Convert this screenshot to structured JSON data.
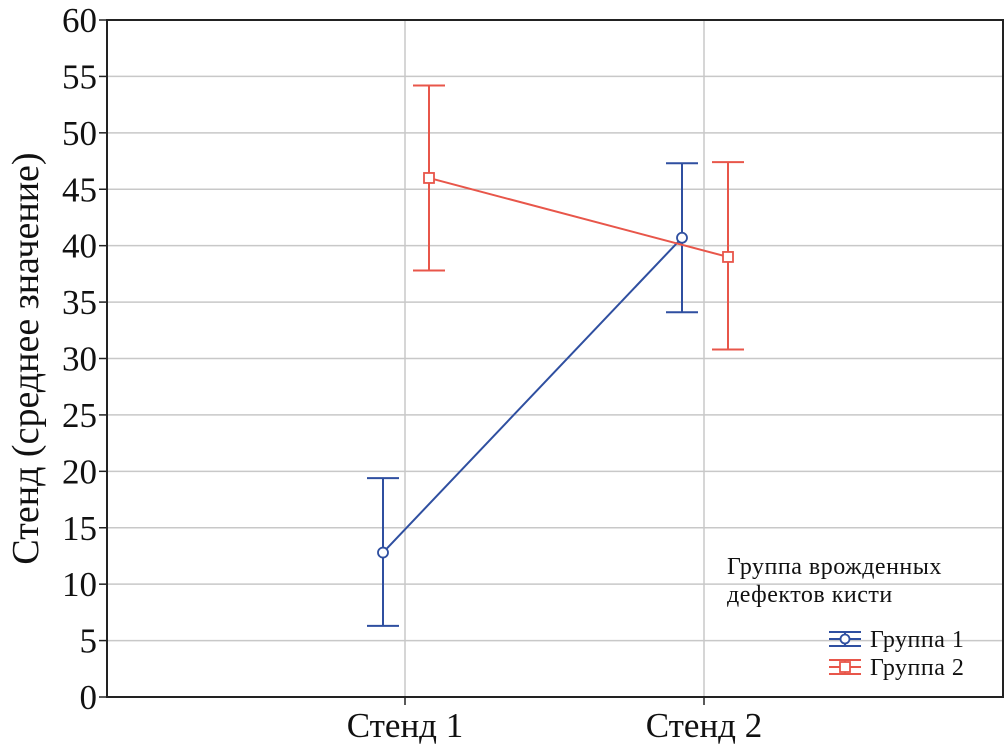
{
  "chart_data": {
    "type": "line",
    "categories": [
      "Стенд 1",
      "Стенд 2"
    ],
    "ylabel": "Стенд (среднее значение)",
    "ylim": [
      0,
      60
    ],
    "yticks": [
      "0",
      "5",
      "10",
      "15",
      "20",
      "25",
      "30",
      "35",
      "40",
      "45",
      "50",
      "55",
      "60"
    ],
    "grid": true,
    "error_bars": true,
    "legend": {
      "title_line1": "Группа врожденных",
      "title_line2": "дефектов кисти",
      "placement": "bottom-right"
    },
    "series": [
      {
        "name": "Группа 1",
        "color": "#2f4fa0",
        "marker": "circle",
        "values": [
          12.8,
          40.7
        ],
        "lower": [
          6.3,
          34.1
        ],
        "upper": [
          19.4,
          47.3
        ]
      },
      {
        "name": "Группа 2",
        "color": "#e8564a",
        "marker": "square",
        "values": [
          46.0,
          39.0
        ],
        "lower": [
          37.8,
          30.8
        ],
        "upper": [
          54.2,
          47.4
        ]
      }
    ]
  }
}
